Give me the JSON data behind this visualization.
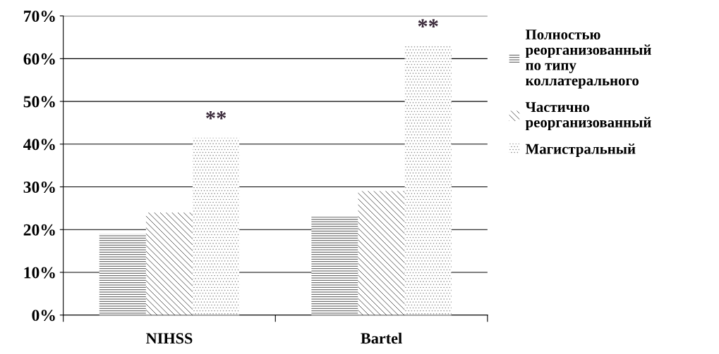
{
  "chart_data": {
    "type": "bar",
    "categories": [
      "NIHSS",
      "Bartel"
    ],
    "series": [
      {
        "name": "Полностью\nреорганизованный\nпо типу\nколлатерального",
        "color": "#303030",
        "values": [
          19,
          23
        ]
      },
      {
        "name": "Частично\nреорганизованный",
        "color": "#404040",
        "values": [
          24,
          29
        ]
      },
      {
        "name": "Магистральный",
        "color": "#808080",
        "values": [
          41.5,
          63
        ]
      }
    ],
    "ylim": [
      0,
      70
    ],
    "yticks": [
      {
        "value": 0,
        "label": "0%"
      },
      {
        "value": 10,
        "label": "10%"
      },
      {
        "value": 20,
        "label": "20%"
      },
      {
        "value": 30,
        "label": "30%"
      },
      {
        "value": 40,
        "label": "40%"
      },
      {
        "value": 50,
        "label": "50%"
      },
      {
        "value": 60,
        "label": "60%"
      },
      {
        "value": 70,
        "label": "70%"
      }
    ],
    "annotations": [
      "**",
      "**"
    ],
    "grid": "y",
    "legend": "right"
  }
}
